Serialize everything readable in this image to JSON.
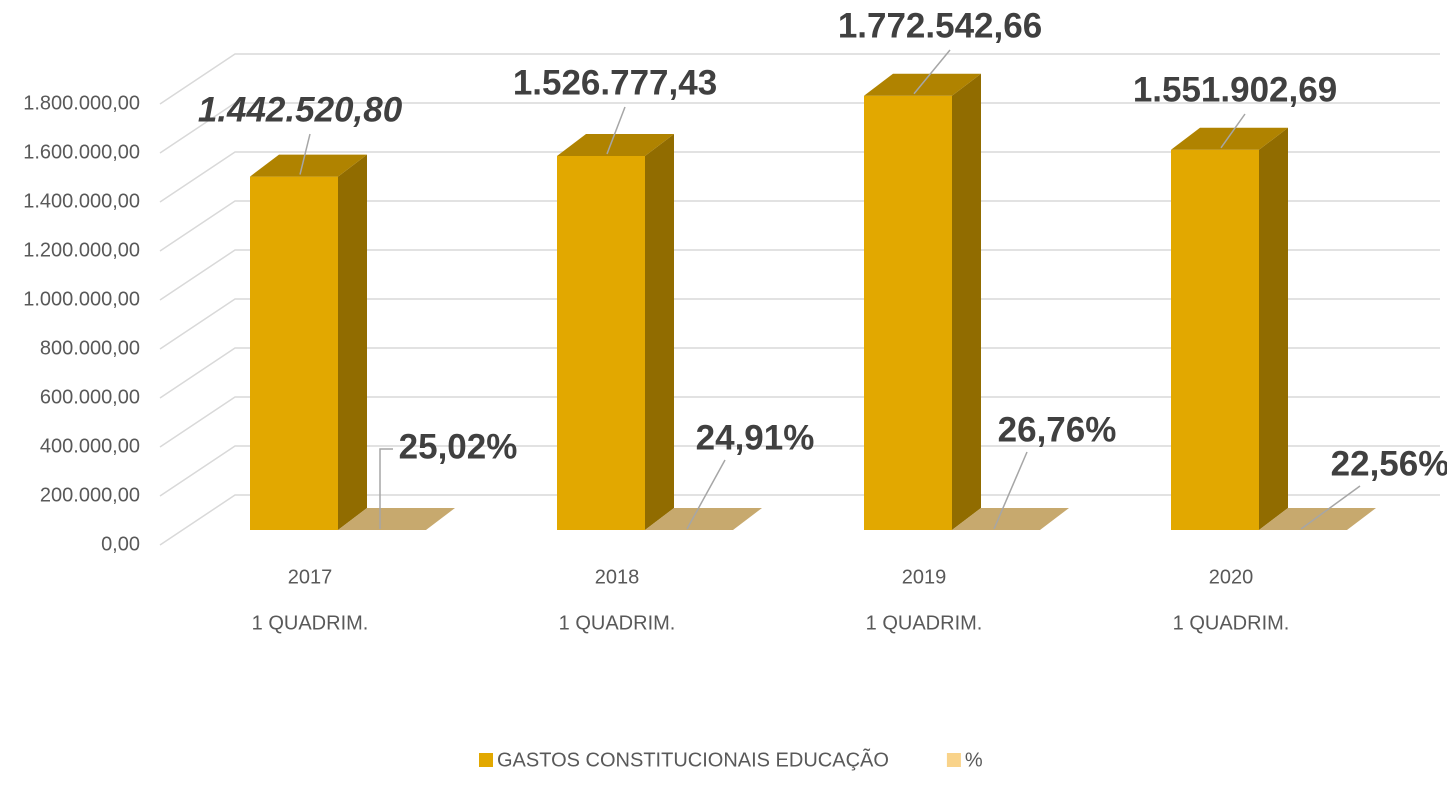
{
  "chart_data": {
    "type": "bar3d",
    "categories": [
      [
        "2017",
        "1 QUADRIM."
      ],
      [
        "2018",
        "1 QUADRIM."
      ],
      [
        "2019",
        "1 QUADRIM."
      ],
      [
        "2020",
        "1 QUADRIM."
      ]
    ],
    "series": [
      {
        "name": "GASTOS CONSTITUCIONAIS EDUCAÇÃO",
        "color": "#e2a800",
        "values": [
          1442520.8,
          1526777.43,
          1772542.66,
          1551902.69
        ],
        "value_labels": [
          "1.442.520,80",
          "1.526.777,43",
          "1.772.542,66",
          "1.551.902,69"
        ]
      },
      {
        "name": "%",
        "color": "#f9d38a",
        "values": [
          25.02,
          24.91,
          26.76,
          22.56
        ],
        "value_labels": [
          "25,02%",
          "24,91%",
          "26,76%",
          "22,56%"
        ]
      }
    ],
    "ylim": [
      0,
      1800000
    ],
    "yticks": [
      {
        "value": 0,
        "label": "0,00"
      },
      {
        "value": 200000,
        "label": "200.000,00"
      },
      {
        "value": 400000,
        "label": "400.000,00"
      },
      {
        "value": 600000,
        "label": "600.000,00"
      },
      {
        "value": 800000,
        "label": "800.000,00"
      },
      {
        "value": 1000000,
        "label": "1.000.000,00"
      },
      {
        "value": 1200000,
        "label": "1.200.000,00"
      },
      {
        "value": 1400000,
        "label": "1.400.000,00"
      },
      {
        "value": 1600000,
        "label": "1.600.000,00"
      },
      {
        "value": 1800000,
        "label": "1.800.000,00"
      }
    ],
    "grid": true,
    "legend": "bottom"
  }
}
